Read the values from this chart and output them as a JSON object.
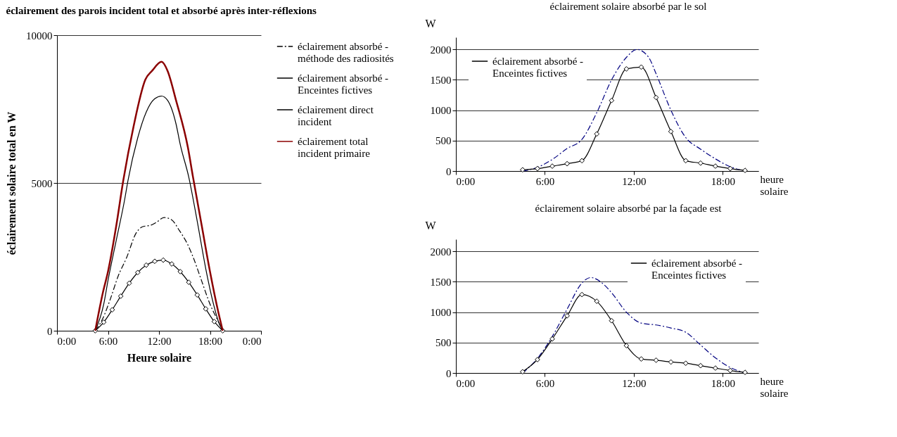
{
  "chart_data": [
    {
      "type": "line",
      "title": "éclairement des parois incident total et absorbé après inter-réflexions",
      "xlabel": "Heure solaire",
      "ylabel": "éclairement solaire total en W",
      "xlim": [
        0,
        24
      ],
      "xticks": [
        {
          "value": 0,
          "label": "0:00"
        },
        {
          "value": 6,
          "label": "6:00"
        },
        {
          "value": 12,
          "label": "12:00"
        },
        {
          "value": 18,
          "label": "18:00"
        },
        {
          "value": 24,
          "label": "0:00"
        }
      ],
      "ylim": [
        0,
        10000
      ],
      "yticks": [
        0,
        5000,
        10000
      ],
      "grid": "y",
      "legend": "right",
      "series": [
        {
          "name": "éclairement absorbé - méthode des radiosités",
          "color": "#000000",
          "line_style": "dashed",
          "x": [
            4.5,
            5.4,
            6.25,
            7.2,
            8.2,
            9.3,
            10,
            11.2,
            11.7,
            12.6,
            13.5,
            14.4,
            15.3,
            16,
            17,
            18,
            19,
            19.5
          ],
          "values": [
            0,
            420,
            1050,
            1850,
            2480,
            3300,
            3510,
            3590,
            3670,
            3830,
            3750,
            3390,
            2960,
            2500,
            1700,
            900,
            300,
            0
          ]
        },
        {
          "name": "éclairement absorbé - Enceintes fictives",
          "color": "#000000",
          "marker": "diamond",
          "x": [
            4.5,
            5.5,
            6.5,
            7.5,
            8.5,
            9.5,
            10.5,
            11.5,
            12.5,
            13.5,
            14.5,
            15.5,
            16.5,
            17.5,
            18.5,
            19.5
          ],
          "values": [
            0,
            290,
            710,
            1170,
            1610,
            1970,
            2220,
            2350,
            2390,
            2260,
            2000,
            1640,
            1210,
            740,
            310,
            0
          ]
        },
        {
          "name": "éclairement direct incident",
          "color": "#000000",
          "x": [
            4.5,
            5.5,
            6,
            7,
            8,
            8.3,
            9.5,
            10.5,
            11.5,
            12.3,
            13,
            14,
            14.5,
            15.5,
            16.5,
            17.5,
            18.5,
            19,
            19.5
          ],
          "values": [
            0,
            900,
            1700,
            3100,
            4500,
            5000,
            6530,
            7400,
            7850,
            7940,
            7800,
            7000,
            6300,
            5200,
            3700,
            2100,
            800,
            300,
            0
          ]
        },
        {
          "name": "éclairement total incident primaire",
          "color": "#8b0000",
          "x": [
            4.5,
            5.4,
            6,
            7,
            7.75,
            9,
            10.4,
            11.2,
            12.3,
            13,
            14,
            15.4,
            16,
            17,
            18,
            19,
            19.5
          ],
          "values": [
            0,
            1290,
            2000,
            3600,
            5000,
            6900,
            8500,
            8800,
            9100,
            8800,
            7800,
            6200,
            5200,
            3600,
            2000,
            600,
            0
          ]
        }
      ]
    },
    {
      "type": "line",
      "title": "éclairement solaire absorbé par le sol",
      "xlabel": "heure solaire",
      "ylabel": "W",
      "xlim": [
        0,
        20.4
      ],
      "xticks": [
        {
          "value": 0,
          "label": "0:00"
        },
        {
          "value": 6,
          "label": "6:00"
        },
        {
          "value": 12,
          "label": "12:00"
        },
        {
          "value": 18,
          "label": "18:00"
        }
      ],
      "ylim": [
        0,
        2200
      ],
      "yticks": [
        0,
        500,
        1000,
        1500,
        2000
      ],
      "grid": "y",
      "legend": "top left",
      "series": [
        {
          "color": "#000080",
          "line_style": "dashed",
          "x": [
            4.5,
            5.5,
            6.5,
            7.5,
            8.5,
            9.5,
            10.5,
            11.5,
            12.2,
            13,
            13.5,
            14.5,
            15.5,
            16.5,
            17.5,
            18.5,
            19.5
          ],
          "values": [
            0,
            60,
            190,
            370,
            520,
            960,
            1500,
            1870,
            2000,
            1870,
            1600,
            1000,
            550,
            360,
            200,
            70,
            0
          ]
        },
        {
          "name": "éclairement absorbé - Enceintes fictives",
          "color": "#000000",
          "marker": "diamond",
          "x": [
            4.5,
            5.5,
            6.5,
            7.5,
            8.5,
            9.5,
            10.5,
            11.5,
            12.5,
            13.5,
            14.5,
            15.5,
            16.5,
            17.5,
            18.5,
            19.5
          ],
          "values": [
            20,
            40,
            80,
            120,
            170,
            610,
            1160,
            1680,
            1710,
            1210,
            650,
            170,
            130,
            80,
            40,
            10
          ]
        }
      ]
    },
    {
      "type": "line",
      "title": "éclairement solaire absorbé par la façade est",
      "xlabel": "heure solaire",
      "ylabel": "W",
      "xlim": [
        0,
        20.4
      ],
      "xticks": [
        {
          "value": 0,
          "label": "0:00"
        },
        {
          "value": 6,
          "label": "6:00"
        },
        {
          "value": 12,
          "label": "12:00"
        },
        {
          "value": 18,
          "label": "18:00"
        }
      ],
      "ylim": [
        0,
        2200
      ],
      "yticks": [
        0,
        500,
        1000,
        1500,
        2000
      ],
      "grid": "y",
      "legend": "top right",
      "series": [
        {
          "color": "#000080",
          "line_style": "dashed",
          "x": [
            4.5,
            5.5,
            6.5,
            7.5,
            8.5,
            9.1,
            10,
            10.5,
            11.5,
            12.5,
            13.5,
            14.5,
            15.5,
            16.5,
            17.5,
            18.5,
            19.5
          ],
          "values": [
            0,
            240,
            600,
            1050,
            1480,
            1570,
            1450,
            1320,
            1000,
            820,
            790,
            740,
            670,
            460,
            250,
            90,
            0
          ]
        },
        {
          "name": "éclairement absorbé - Enceintes fictives",
          "color": "#000000",
          "marker": "diamond",
          "x": [
            4.5,
            5.5,
            6.5,
            7.5,
            8.5,
            9.5,
            10.5,
            11.5,
            12.5,
            13.5,
            14.5,
            15.5,
            16.5,
            17.5,
            18.5,
            19.5
          ],
          "values": [
            20,
            220,
            560,
            940,
            1290,
            1180,
            860,
            450,
            230,
            210,
            180,
            160,
            120,
            80,
            40,
            10
          ]
        }
      ]
    }
  ]
}
